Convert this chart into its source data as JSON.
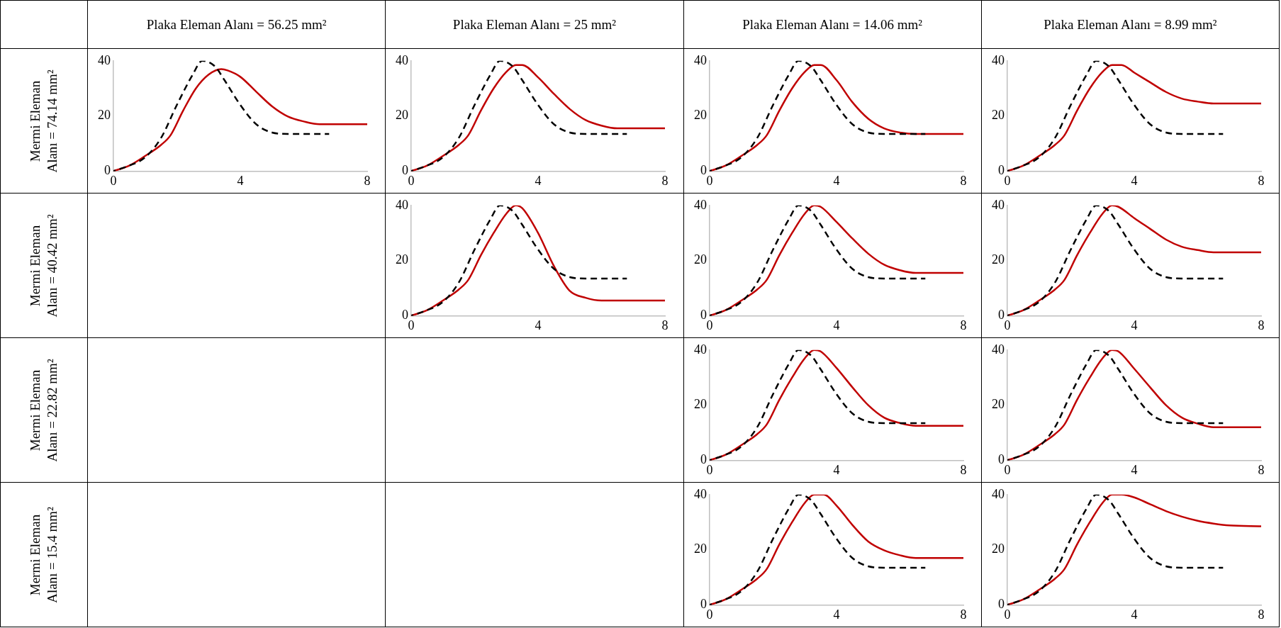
{
  "chart_data": [
    {
      "type": "line",
      "title": "Plaka Eleman Alanı = 56.25 mm²",
      "ylabel": "Mermi Eleman Alanı = 74.14 mm²",
      "xlim": [
        0,
        8
      ],
      "xticks": [
        0,
        4,
        8
      ],
      "ylim": [
        0,
        40
      ],
      "yticks": [
        0,
        20,
        40
      ],
      "grid": false,
      "legend": false,
      "marker": "none",
      "series": [
        {
          "color": "#000000",
          "line_style": "dashed",
          "x": [
            0,
            0.5,
            1,
            1.5,
            2,
            2.5,
            2.8,
            3.2,
            3.5,
            4,
            4.5,
            5,
            5.5,
            6.8
          ],
          "values": [
            0,
            2,
            5,
            12,
            24,
            35,
            40,
            38,
            33,
            24,
            17,
            14,
            13.5,
            13.5
          ]
        },
        {
          "color": "#c00000",
          "line_style": "solid",
          "x": [
            0,
            0.5,
            1,
            1.5,
            1.8,
            2.2,
            2.6,
            3,
            3.4,
            3.6,
            4,
            4.5,
            5,
            5.5,
            6,
            6.5,
            8
          ],
          "values": [
            0,
            2,
            5.5,
            9.5,
            13,
            22,
            30,
            35,
            37,
            36.5,
            34.2,
            28.8,
            23.5,
            19.8,
            18,
            17,
            17
          ]
        }
      ]
    },
    {
      "type": "line",
      "title": "Plaka Eleman Alanı = 25 mm²",
      "xlim": [
        0,
        8
      ],
      "xticks": [
        0,
        4,
        8
      ],
      "ylim": [
        0,
        40
      ],
      "yticks": [
        0,
        20,
        40
      ],
      "grid": false,
      "legend": false,
      "marker": "none",
      "series": [
        {
          "color": "#000000",
          "line_style": "dashed",
          "x": [
            0,
            0.5,
            1,
            1.5,
            2,
            2.5,
            2.8,
            3.2,
            3.5,
            4,
            4.5,
            5,
            5.5,
            6.8
          ],
          "values": [
            0,
            2,
            5,
            12,
            24,
            35,
            40,
            38,
            33,
            24,
            17,
            14,
            13.5,
            13.5
          ]
        },
        {
          "color": "#c00000",
          "line_style": "solid",
          "x": [
            0,
            0.5,
            1,
            1.5,
            1.8,
            2.2,
            2.6,
            3,
            3.3,
            3.5,
            4,
            4.5,
            5,
            5.5,
            6,
            6.5,
            8
          ],
          "values": [
            0,
            2,
            5.5,
            9.5,
            13,
            22,
            30,
            36,
            38.5,
            38.5,
            34,
            28,
            22.5,
            18.5,
            16.5,
            15.5,
            15.5
          ]
        }
      ]
    },
    {
      "type": "line",
      "title": "Plaka Eleman Alanı = 14.06 mm²",
      "xlim": [
        0,
        8
      ],
      "xticks": [
        0,
        4,
        8
      ],
      "ylim": [
        0,
        40
      ],
      "yticks": [
        0,
        20,
        40
      ],
      "grid": false,
      "legend": false,
      "marker": "none",
      "series": [
        {
          "color": "#000000",
          "line_style": "dashed",
          "x": [
            0,
            0.5,
            1,
            1.5,
            2,
            2.5,
            2.8,
            3.2,
            3.5,
            4,
            4.5,
            5,
            5.5,
            6.8
          ],
          "values": [
            0,
            2,
            5,
            12,
            24,
            35,
            40,
            38,
            33,
            24,
            17,
            14,
            13.5,
            13.5
          ]
        },
        {
          "color": "#c00000",
          "line_style": "solid",
          "x": [
            0,
            0.5,
            1,
            1.5,
            1.8,
            2.2,
            2.6,
            3,
            3.3,
            3.5,
            4,
            4.5,
            5,
            5.5,
            6,
            6.5,
            8
          ],
          "values": [
            0,
            2,
            5.5,
            9.5,
            13,
            22,
            30,
            36,
            38.5,
            38.5,
            33,
            25,
            19,
            15.5,
            14,
            13.5,
            13.5
          ]
        }
      ]
    },
    {
      "type": "line",
      "title": "Plaka Eleman Alanı = 8.99 mm²",
      "xlim": [
        0,
        8
      ],
      "xticks": [
        0,
        4,
        8
      ],
      "ylim": [
        0,
        40
      ],
      "yticks": [
        0,
        20,
        40
      ],
      "grid": false,
      "legend": false,
      "marker": "none",
      "series": [
        {
          "color": "#000000",
          "line_style": "dashed",
          "x": [
            0,
            0.5,
            1,
            1.5,
            2,
            2.5,
            2.8,
            3.2,
            3.5,
            4,
            4.5,
            5,
            5.5,
            6.8
          ],
          "values": [
            0,
            2,
            5,
            12,
            24,
            35,
            40,
            38,
            33,
            24,
            17,
            14,
            13.5,
            13.5
          ]
        },
        {
          "color": "#c00000",
          "line_style": "solid",
          "x": [
            0,
            0.5,
            1,
            1.5,
            1.8,
            2.2,
            2.6,
            3,
            3.3,
            3.6,
            4,
            4.5,
            5,
            5.5,
            6,
            6.5,
            8
          ],
          "values": [
            0,
            2,
            5.5,
            9.5,
            13,
            22,
            30,
            36,
            38.5,
            38.5,
            35.7,
            32.2,
            28.7,
            26.3,
            25.2,
            24.5,
            24.5
          ]
        }
      ]
    },
    {
      "type": "line",
      "ylabel": "Mermi Eleman Alanı = 40.42 mm²",
      "xlim": [
        0,
        8
      ],
      "xticks": [
        0,
        4,
        8
      ],
      "ylim": [
        0,
        40
      ],
      "yticks": [
        0,
        20,
        40
      ],
      "grid": false,
      "legend": false,
      "marker": "none",
      "series": [
        {
          "color": "#000000",
          "line_style": "dashed",
          "x": [
            0,
            0.5,
            1,
            1.5,
            2,
            2.5,
            2.8,
            3.2,
            3.5,
            4,
            4.5,
            5,
            5.5,
            6.8
          ],
          "values": [
            0,
            2,
            5,
            12,
            24,
            35,
            40,
            38,
            33,
            24,
            17,
            14,
            13.5,
            13.5
          ]
        },
        {
          "color": "#c00000",
          "line_style": "solid",
          "x": [
            0,
            0.5,
            1,
            1.5,
            1.8,
            2.2,
            2.6,
            3,
            3.3,
            3.5,
            4,
            4.5,
            5,
            5.5,
            6,
            8
          ],
          "values": [
            0,
            2,
            5.5,
            9.5,
            13,
            22,
            30,
            37,
            40,
            39,
            30,
            18,
            9,
            6.5,
            5.5,
            5.5
          ]
        }
      ]
    },
    {
      "type": "line",
      "xlim": [
        0,
        8
      ],
      "xticks": [
        0,
        4,
        8
      ],
      "ylim": [
        0,
        40
      ],
      "yticks": [
        0,
        20,
        40
      ],
      "grid": false,
      "legend": false,
      "marker": "none",
      "series": [
        {
          "color": "#000000",
          "line_style": "dashed",
          "x": [
            0,
            0.5,
            1,
            1.5,
            2,
            2.5,
            2.8,
            3.2,
            3.5,
            4,
            4.5,
            5,
            5.5,
            6.8
          ],
          "values": [
            0,
            2,
            5,
            12,
            24,
            35,
            40,
            38,
            33,
            24,
            17,
            14,
            13.5,
            13.5
          ]
        },
        {
          "color": "#c00000",
          "line_style": "solid",
          "x": [
            0,
            0.5,
            1,
            1.5,
            1.8,
            2.2,
            2.6,
            3,
            3.3,
            3.5,
            4,
            4.5,
            5,
            5.5,
            6,
            6.5,
            8
          ],
          "values": [
            0,
            2,
            5.5,
            9.5,
            13,
            22,
            30,
            37,
            40,
            39.5,
            34,
            28,
            22.5,
            18.5,
            16.5,
            15.5,
            15.5
          ]
        }
      ]
    },
    {
      "type": "line",
      "xlim": [
        0,
        8
      ],
      "xticks": [
        0,
        4,
        8
      ],
      "ylim": [
        0,
        40
      ],
      "yticks": [
        0,
        20,
        40
      ],
      "grid": false,
      "legend": false,
      "marker": "none",
      "series": [
        {
          "color": "#000000",
          "line_style": "dashed",
          "x": [
            0,
            0.5,
            1,
            1.5,
            2,
            2.5,
            2.8,
            3.2,
            3.5,
            4,
            4.5,
            5,
            5.5,
            6.8
          ],
          "values": [
            0,
            2,
            5,
            12,
            24,
            35,
            40,
            38,
            33,
            24,
            17,
            14,
            13.5,
            13.5
          ]
        },
        {
          "color": "#c00000",
          "line_style": "solid",
          "x": [
            0,
            0.5,
            1,
            1.5,
            1.8,
            2.2,
            2.6,
            3,
            3.3,
            3.5,
            4,
            4.5,
            5,
            5.5,
            6,
            6.5,
            8
          ],
          "values": [
            0,
            2,
            5.5,
            9.5,
            13,
            22,
            30,
            37,
            40,
            39.5,
            35.4,
            31.5,
            27.6,
            25,
            23.8,
            23,
            23
          ]
        }
      ]
    },
    {
      "type": "line",
      "ylabel": "Mermi Eleman Alanı = 22.82 mm²",
      "xlim": [
        0,
        8
      ],
      "xticks": [
        0,
        4,
        8
      ],
      "ylim": [
        0,
        40
      ],
      "yticks": [
        0,
        20,
        40
      ],
      "grid": false,
      "legend": false,
      "marker": "none",
      "series": [
        {
          "color": "#000000",
          "line_style": "dashed",
          "x": [
            0,
            0.5,
            1,
            1.5,
            2,
            2.5,
            2.8,
            3.2,
            3.5,
            4,
            4.5,
            5,
            5.5,
            6.8
          ],
          "values": [
            0,
            2,
            5,
            12,
            24,
            35,
            40,
            38,
            33,
            24,
            17,
            14,
            13.5,
            13.5
          ]
        },
        {
          "color": "#c00000",
          "line_style": "solid",
          "x": [
            0,
            0.5,
            1,
            1.5,
            1.8,
            2.2,
            2.6,
            3,
            3.3,
            3.5,
            4,
            4.5,
            5,
            5.5,
            6,
            6.5,
            8
          ],
          "values": [
            0,
            2,
            5.5,
            9.5,
            13,
            22,
            30,
            37,
            40,
            39.5,
            33.5,
            26.5,
            20,
            15.5,
            13.5,
            12.5,
            12.5
          ]
        }
      ]
    },
    {
      "type": "line",
      "xlim": [
        0,
        8
      ],
      "xticks": [
        0,
        4,
        8
      ],
      "ylim": [
        0,
        40
      ],
      "yticks": [
        0,
        20,
        40
      ],
      "grid": false,
      "legend": false,
      "marker": "none",
      "series": [
        {
          "color": "#000000",
          "line_style": "dashed",
          "x": [
            0,
            0.5,
            1,
            1.5,
            2,
            2.5,
            2.8,
            3.2,
            3.5,
            4,
            4.5,
            5,
            5.5,
            6.8
          ],
          "values": [
            0,
            2,
            5,
            12,
            24,
            35,
            40,
            38,
            33,
            24,
            17,
            14,
            13.5,
            13.5
          ]
        },
        {
          "color": "#c00000",
          "line_style": "solid",
          "x": [
            0,
            0.5,
            1,
            1.5,
            1.8,
            2.2,
            2.6,
            3,
            3.3,
            3.5,
            4,
            4.5,
            5,
            5.5,
            6,
            6.5,
            8
          ],
          "values": [
            0,
            2,
            5.5,
            9.5,
            13,
            22,
            30,
            37,
            40,
            39.5,
            33.2,
            26.5,
            20,
            15.5,
            13.3,
            12,
            12
          ]
        }
      ]
    },
    {
      "type": "line",
      "ylabel": "Mermi Eleman Alanı = 15.4 mm²",
      "xlim": [
        0,
        8
      ],
      "xticks": [
        0,
        4,
        8
      ],
      "ylim": [
        0,
        40
      ],
      "yticks": [
        0,
        20,
        40
      ],
      "grid": false,
      "legend": false,
      "marker": "none",
      "series": [
        {
          "color": "#000000",
          "line_style": "dashed",
          "x": [
            0,
            0.5,
            1,
            1.5,
            2,
            2.5,
            2.8,
            3.2,
            3.5,
            4,
            4.5,
            5,
            5.5,
            6.8
          ],
          "values": [
            0,
            2,
            5,
            12,
            24,
            35,
            40,
            38,
            33,
            24,
            17,
            14,
            13.5,
            13.5
          ]
        },
        {
          "color": "#c00000",
          "line_style": "solid",
          "x": [
            0,
            0.5,
            1,
            1.5,
            1.8,
            2.2,
            2.6,
            3,
            3.3,
            3.6,
            4,
            4.5,
            5,
            5.5,
            6,
            6.5,
            8
          ],
          "values": [
            0,
            2,
            5.5,
            9.5,
            13,
            22,
            30,
            37,
            40,
            40,
            36,
            29,
            23,
            19.8,
            18,
            17,
            17
          ]
        }
      ]
    },
    {
      "type": "line",
      "xlim": [
        0,
        8
      ],
      "xticks": [
        0,
        4,
        8
      ],
      "ylim": [
        0,
        40
      ],
      "yticks": [
        0,
        20,
        40
      ],
      "grid": false,
      "legend": false,
      "marker": "none",
      "series": [
        {
          "color": "#000000",
          "line_style": "dashed",
          "x": [
            0,
            0.5,
            1,
            1.5,
            2,
            2.5,
            2.8,
            3.2,
            3.5,
            4,
            4.5,
            5,
            5.5,
            6.8
          ],
          "values": [
            0,
            2,
            5,
            12,
            24,
            35,
            40,
            38,
            33,
            24,
            17,
            14,
            13.5,
            13.5
          ]
        },
        {
          "color": "#c00000",
          "line_style": "solid",
          "x": [
            0,
            0.5,
            1,
            1.5,
            1.8,
            2.2,
            2.6,
            3,
            3.3,
            3.6,
            4,
            4.5,
            5,
            5.5,
            6,
            6.5,
            7,
            8
          ],
          "values": [
            0,
            2,
            5.5,
            9.5,
            13,
            22,
            30,
            37,
            40,
            40,
            39,
            36.5,
            34,
            32,
            30.5,
            29.5,
            28.8,
            28.5
          ]
        }
      ]
    }
  ]
}
